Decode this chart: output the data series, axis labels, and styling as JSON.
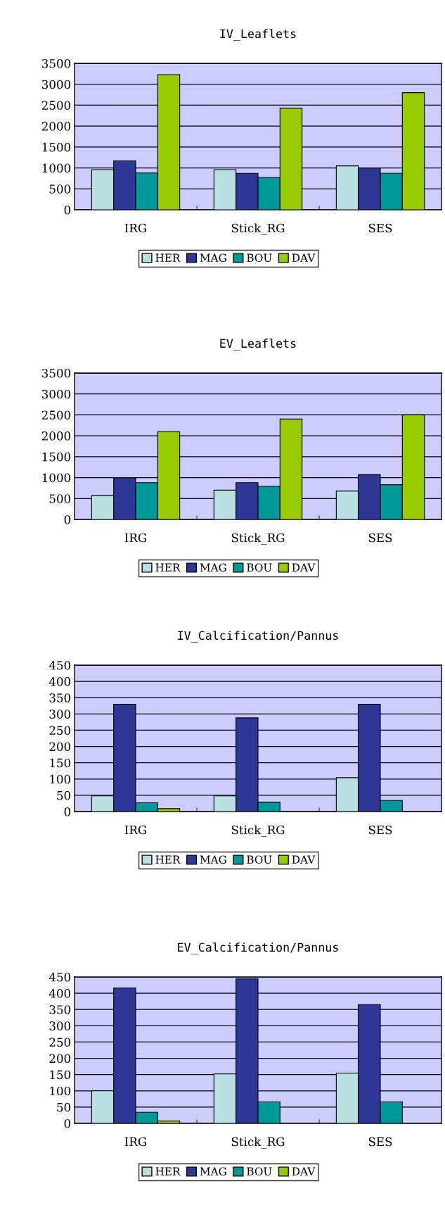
{
  "chart_data": [
    {
      "type": "bar",
      "title": "IV_Leaflets",
      "categories": [
        "IRG",
        "Stick_RG",
        "SES"
      ],
      "series": [
        {
          "name": "HER",
          "color": "#b8e0e0",
          "values": [
            960,
            960,
            1050
          ]
        },
        {
          "name": "MAG",
          "color": "#2e3696",
          "values": [
            1170,
            870,
            1000
          ]
        },
        {
          "name": "BOU",
          "color": "#009999",
          "values": [
            880,
            770,
            870
          ]
        },
        {
          "name": "DAV",
          "color": "#99cc00",
          "values": [
            3230,
            2430,
            2800
          ]
        }
      ],
      "ylim": [
        0,
        3500
      ],
      "yticks": [
        0,
        500,
        1000,
        1500,
        2000,
        2500,
        3000,
        3500
      ],
      "grid": "y",
      "legend": "bottom"
    },
    {
      "type": "bar",
      "title": "EV_Leaflets",
      "categories": [
        "IRG",
        "Stick_RG",
        "SES"
      ],
      "series": [
        {
          "name": "HER",
          "color": "#b8e0e0",
          "values": [
            570,
            700,
            680
          ]
        },
        {
          "name": "MAG",
          "color": "#2e3696",
          "values": [
            1000,
            880,
            1070
          ]
        },
        {
          "name": "BOU",
          "color": "#009999",
          "values": [
            880,
            790,
            830
          ]
        },
        {
          "name": "DAV",
          "color": "#99cc00",
          "values": [
            2100,
            2400,
            2500
          ]
        }
      ],
      "ylim": [
        0,
        3500
      ],
      "yticks": [
        0,
        500,
        1000,
        1500,
        2000,
        2500,
        3000,
        3500
      ],
      "grid": "y",
      "legend": "bottom"
    },
    {
      "type": "bar",
      "title": "IV_Calcification/Pannus",
      "categories": [
        "IRG",
        "Stick_RG",
        "SES"
      ],
      "series": [
        {
          "name": "HER",
          "color": "#b8e0e0",
          "values": [
            48,
            48,
            104
          ]
        },
        {
          "name": "MAG",
          "color": "#2e3696",
          "values": [
            330,
            288,
            330
          ]
        },
        {
          "name": "BOU",
          "color": "#009999",
          "values": [
            27,
            29,
            34
          ]
        },
        {
          "name": "DAV",
          "color": "#99cc00",
          "values": [
            9,
            null,
            null
          ]
        }
      ],
      "ylim": [
        0,
        450
      ],
      "yticks": [
        0,
        50,
        100,
        150,
        200,
        250,
        300,
        350,
        400,
        450
      ],
      "grid": "y",
      "legend": "bottom"
    },
    {
      "type": "bar",
      "title": "EV_Calcification/Pannus",
      "categories": [
        "IRG",
        "Stick_RG",
        "SES"
      ],
      "series": [
        {
          "name": "HER",
          "color": "#b8e0e0",
          "values": [
            100,
            152,
            154
          ]
        },
        {
          "name": "MAG",
          "color": "#2e3696",
          "values": [
            416,
            444,
            365
          ]
        },
        {
          "name": "BOU",
          "color": "#009999",
          "values": [
            34,
            66,
            66
          ]
        },
        {
          "name": "DAV",
          "color": "#99cc00",
          "values": [
            7,
            null,
            null
          ]
        }
      ],
      "ylim": [
        0,
        450
      ],
      "yticks": [
        0,
        50,
        100,
        150,
        200,
        250,
        300,
        350,
        400,
        450
      ],
      "grid": "y",
      "legend": "bottom"
    }
  ]
}
